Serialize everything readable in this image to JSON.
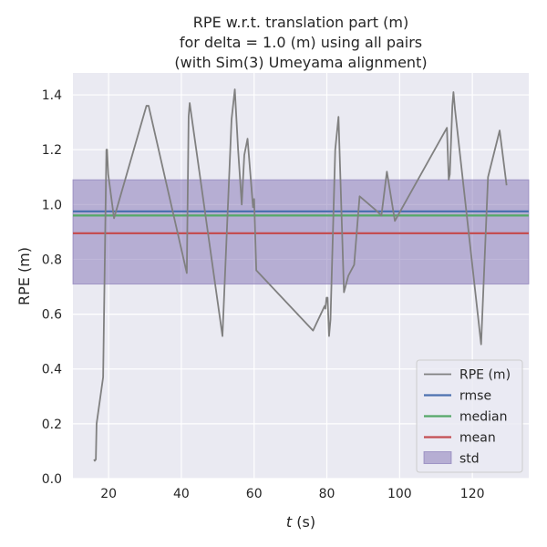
{
  "chart_data": {
    "type": "line",
    "title_lines": [
      "RPE w.r.t. translation part (m)",
      "for delta = 1.0 (m) using all pairs",
      "(with Sim(3) Umeyama alignment)"
    ],
    "xlabel_italic": "t",
    "xlabel_unit": " (s)",
    "ylabel": "RPE (m)",
    "xlim": [
      10.2,
      135.5
    ],
    "ylim": [
      0.0,
      1.48
    ],
    "x_ticks": [
      20,
      40,
      60,
      80,
      100,
      120
    ],
    "y_ticks": [
      0.0,
      0.2,
      0.4,
      0.6,
      0.8,
      1.0,
      1.2,
      1.4
    ],
    "y_tick_labels": [
      "0.0",
      "0.2",
      "0.4",
      "0.6",
      "0.8",
      "1.0",
      "1.2",
      "1.4"
    ],
    "grid": true,
    "legend_position": "lower-right",
    "series": [
      {
        "name": "RPE (m)",
        "color": "#808080",
        "x": [
          16.0,
          16.2,
          16.5,
          16.7,
          18.5,
          19.4,
          19.6,
          19.9,
          21.5,
          30.4,
          31.0,
          41.5,
          42.0,
          42.3,
          51.3,
          53.8,
          54.7,
          55.6,
          56.6,
          57.3,
          58.2,
          59.7,
          60.0,
          60.6,
          76.2,
          79.4,
          79.6,
          79.9,
          80.2,
          80.6,
          81.0,
          82.3,
          83.2,
          84.7,
          85.9,
          87.5,
          89.0,
          93.4,
          95.0,
          96.5,
          98.7,
          113.0,
          113.5,
          113.8,
          114.5,
          114.8,
          115.2,
          122.4,
          124.3,
          127.5,
          129.4
        ],
        "y": [
          0.07,
          0.065,
          0.07,
          0.2,
          0.37,
          1.2,
          1.2,
          1.11,
          0.95,
          1.36,
          1.36,
          0.75,
          1.32,
          1.37,
          0.52,
          1.31,
          1.42,
          1.2,
          1.0,
          1.18,
          1.24,
          0.99,
          1.02,
          0.76,
          0.54,
          0.63,
          0.62,
          0.66,
          0.66,
          0.52,
          0.58,
          1.2,
          1.32,
          0.68,
          0.74,
          0.78,
          1.03,
          0.98,
          0.96,
          1.12,
          0.94,
          1.28,
          1.09,
          1.11,
          1.36,
          1.41,
          1.35,
          0.49,
          1.1,
          1.27,
          1.07
        ]
      }
    ],
    "stats": [
      {
        "name": "rmse",
        "value": 0.975,
        "color": "#4c72b0"
      },
      {
        "name": "median",
        "value": 0.96,
        "color": "#55a868"
      },
      {
        "name": "mean",
        "value": 0.895,
        "color": "#c44e52"
      }
    ],
    "std_band": {
      "name": "std",
      "lower": 0.71,
      "upper": 1.09,
      "color": "#8172b3"
    }
  }
}
